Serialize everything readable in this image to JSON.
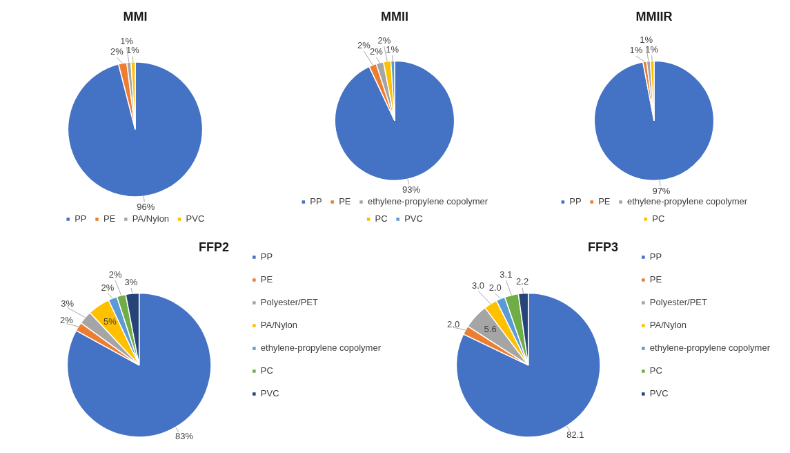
{
  "chart_data": [
    {
      "type": "pie",
      "title": "MMI",
      "categories": [
        "PP",
        "PE",
        "PA/Nylon",
        "PVC"
      ],
      "values": [
        96,
        2,
        1,
        1
      ],
      "value_labels": [
        "96%",
        "2%",
        "1%",
        "1%"
      ],
      "colors": [
        "#4472c4",
        "#ed7d31",
        "#a5a5a5",
        "#ffc000"
      ],
      "legend": "bottom"
    },
    {
      "type": "pie",
      "title": "MMII",
      "categories": [
        "PP",
        "PE",
        "ethylene-propylene copolymer",
        "PC",
        "PVC"
      ],
      "values": [
        93,
        2,
        2,
        2,
        1
      ],
      "value_labels": [
        "93%",
        "2%",
        "2%",
        "2%",
        "1%"
      ],
      "colors": [
        "#4472c4",
        "#ed7d31",
        "#a5a5a5",
        "#ffc000",
        "#5b9bd5"
      ],
      "legend": "bottom"
    },
    {
      "type": "pie",
      "title": "MMIIR",
      "categories": [
        "PP",
        "PE",
        "ethylene-propylene copolymer",
        "PC"
      ],
      "values": [
        97,
        1,
        1,
        1
      ],
      "value_labels": [
        "97%",
        "1%",
        "1%",
        "1%"
      ],
      "colors": [
        "#4472c4",
        "#ed7d31",
        "#a5a5a5",
        "#ffc000"
      ],
      "legend": "bottom"
    },
    {
      "type": "pie",
      "title": "FFP2",
      "categories": [
        "PP",
        "PE",
        "Polyester/PET",
        "PA/Nylon",
        "ethylene-propylene copolymer",
        "PC",
        "PVC"
      ],
      "values": [
        83,
        2,
        3,
        5,
        2,
        2,
        3
      ],
      "value_labels": [
        "83%",
        "2%",
        "3%",
        "5%",
        "2%",
        "2%",
        "3%"
      ],
      "colors": [
        "#4472c4",
        "#ed7d31",
        "#a5a5a5",
        "#ffc000",
        "#5b9bd5",
        "#70ad47",
        "#264478"
      ],
      "legend": "right"
    },
    {
      "type": "pie",
      "title": "FFP3",
      "categories": [
        "PP",
        "PE",
        "Polyester/PET",
        "PA/Nylon",
        "ethylene-propylene copolymer",
        "PC",
        "PVC"
      ],
      "values": [
        82.1,
        2.0,
        5.6,
        3.0,
        2.0,
        3.1,
        2.2
      ],
      "value_labels": [
        "82.1",
        "2.0",
        "5.6",
        "3.0",
        "2.0",
        "3.1",
        "2.2"
      ],
      "colors": [
        "#4472c4",
        "#ed7d31",
        "#a5a5a5",
        "#ffc000",
        "#5b9bd5",
        "#70ad47",
        "#264478"
      ],
      "legend": "right"
    }
  ]
}
